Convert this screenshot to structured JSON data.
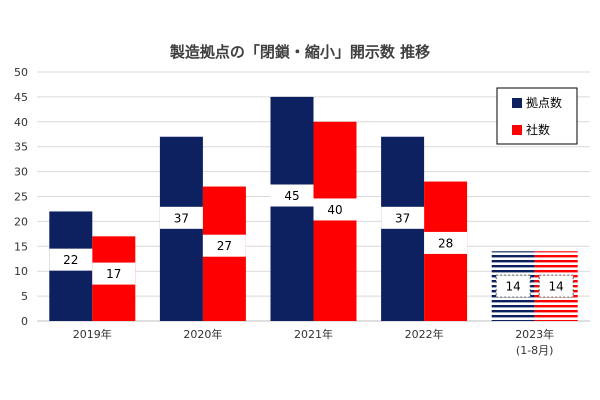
{
  "chart_data": {
    "type": "bar",
    "title": "製造拠点の「閉鎖・縮小」開示数 推移",
    "categories": [
      "2019年",
      "2020年",
      "2021年",
      "2022年",
      "2023年"
    ],
    "category_sublabels": [
      "",
      "",
      "",
      "",
      "(1-8月)"
    ],
    "series": [
      {
        "name": "拠点数",
        "values": [
          22,
          37,
          45,
          37,
          14
        ],
        "color": "#0d2060"
      },
      {
        "name": "社数",
        "values": [
          17,
          27,
          40,
          28,
          14
        ],
        "color": "#ff0000"
      }
    ],
    "ylim": [
      0,
      50
    ],
    "yticks": [
      0,
      5,
      10,
      15,
      20,
      25,
      30,
      35,
      40,
      45,
      50
    ],
    "grid": true,
    "legend": "top-right",
    "striped_categories": [
      4
    ]
  }
}
